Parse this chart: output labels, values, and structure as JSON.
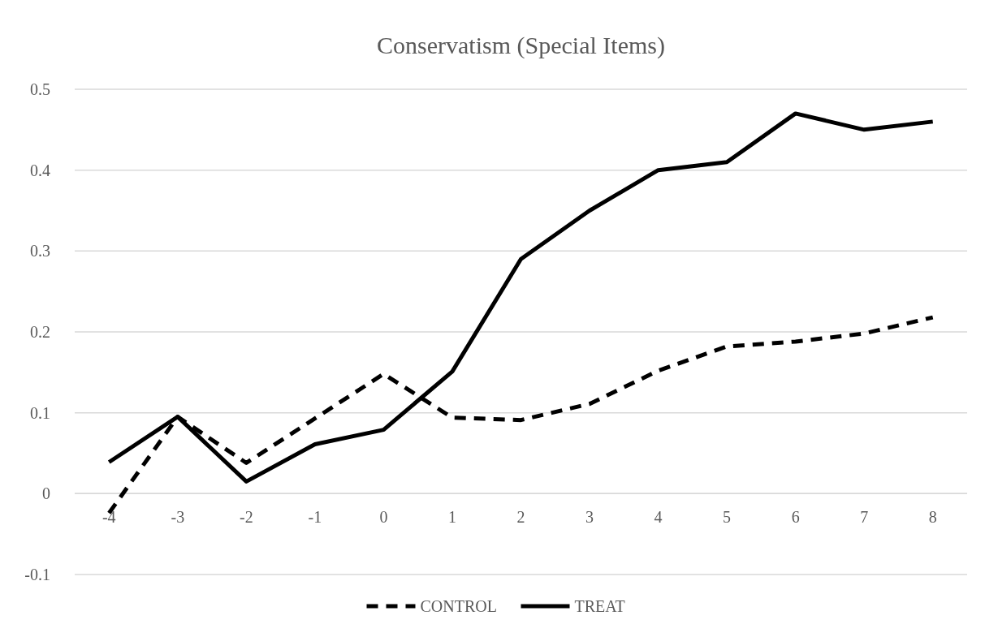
{
  "chart_data": {
    "type": "line",
    "title": "Conservatism (Special Items)",
    "categories": [
      "-4",
      "-3",
      "-2",
      "-1",
      "0",
      "1",
      "2",
      "3",
      "4",
      "5",
      "6",
      "7",
      "8"
    ],
    "series": [
      {
        "name": "CONTROL",
        "color": "#000000",
        "line_style": "dashed",
        "values": [
          -0.024,
          0.095,
          0.038,
          0.093,
          0.148,
          0.094,
          0.091,
          0.111,
          0.152,
          0.182,
          0.188,
          0.198,
          0.218
        ]
      },
      {
        "name": "TREAT",
        "color": "#000000",
        "line_style": "solid",
        "values": [
          0.039,
          0.095,
          0.015,
          0.061,
          0.079,
          0.151,
          0.29,
          0.35,
          0.4,
          0.41,
          0.47,
          0.45,
          0.46
        ]
      }
    ],
    "ylim": [
      -0.1,
      0.5
    ],
    "yticks": [
      -0.1,
      0,
      0.1,
      0.2,
      0.3,
      0.4,
      0.5
    ],
    "grid": "y",
    "legend": "bottom",
    "marker": "none"
  }
}
